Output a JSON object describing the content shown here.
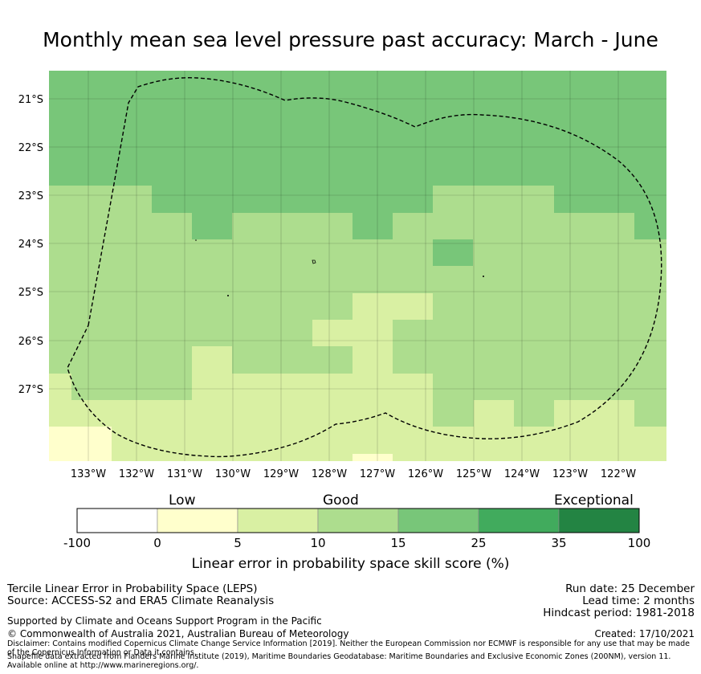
{
  "title": "Monthly mean sea level pressure past accuracy: March - June",
  "map": {
    "lat_labels": [
      "21°S",
      "22°S",
      "23°S",
      "24°S",
      "25°S",
      "26°S",
      "27°S"
    ],
    "lon_labels": [
      "133°W",
      "132°W",
      "131°W",
      "130°W",
      "129°W",
      "128°W",
      "127°W",
      "126°W",
      "125°W",
      "124°W",
      "123°W",
      "122°W"
    ]
  },
  "colorbar": {
    "categories": [
      "Low",
      "Good",
      "Exceptional"
    ],
    "ticks": [
      "-100",
      "0",
      "5",
      "10",
      "15",
      "25",
      "35",
      "100"
    ],
    "colors": [
      "#ffffff",
      "#ffffcc",
      "#d9f0a3",
      "#addd8e",
      "#78c679",
      "#41ab5d",
      "#238443"
    ],
    "label": "Linear error in probability space skill score (%)"
  },
  "footer": {
    "left1": "Tercile Linear Error in Probability Space (LEPS)",
    "left2": "Source: ACCESS-S2 and ERA5 Climate Reanalysis",
    "support": "Supported by Climate and Oceans Support Program in the Pacific",
    "copyright": "© Commonwealth of Australia 2021, Australian Bureau of Meteorology",
    "disclaimer": "Disclaimer: Contains modified Copernicus Climate Change Service Information [2019]. Neither the European Commission nor ECMWF is responsible for any use that may be made of the Copernicus Information or Data it contains.",
    "shapefile": "Shapefile data extracted from Flanders Marine Institute (2019), Maritime Boundaries Geodatabase: Maritime Boundaries and Exclusive Economic Zones (200NM), version 11. Available online at http://www.marineregions.org/.",
    "run_date": "Run date: 25 December",
    "lead_time": "Lead time: 2 months",
    "hindcast": "Hindcast period: 1981-2018",
    "created": "Created: 17/10/2021"
  }
}
